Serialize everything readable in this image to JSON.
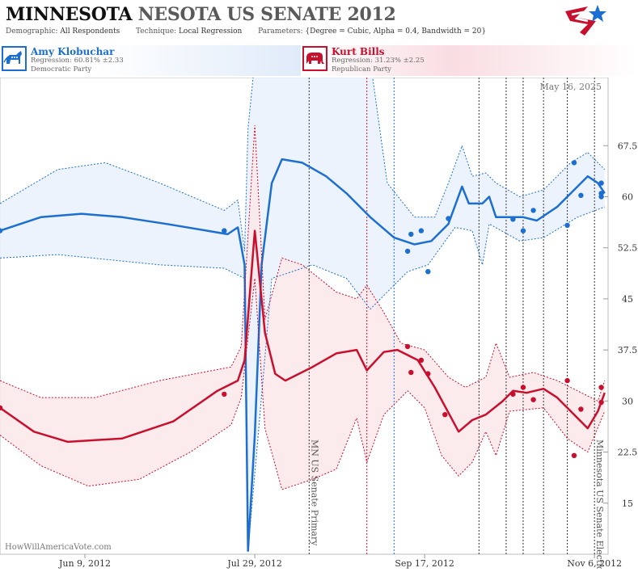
{
  "header": {
    "title_main": "MINNESOTA",
    "title_rest": "NESOTA US SENATE 2012",
    "demographic_label": "Demographic:",
    "demographic_value": "All Respondents",
    "technique_label": "Technique:",
    "technique_value": "Local Regression",
    "parameters_label": "Parameters:",
    "parameters_value": "{Degree = Cubic, Alpha = 0.4, Bandwidth = 20}"
  },
  "candidates": {
    "dem": {
      "name": "Amy Klobuchar",
      "regression": "Regression: 60.81% ±2.33",
      "party": "Democratic Party",
      "color": "#1c6fd0",
      "icon": "donkey-icon"
    },
    "rep": {
      "name": "Kurt Bills",
      "regression": "Regression: 31.23% ±2.25",
      "party": "Republican Party",
      "color": "#c8102e",
      "icon": "elephant-icon"
    }
  },
  "chart_data": {
    "type": "line",
    "date_label": "May 16, 2025",
    "watermark": "HowWillAmericaVote.com",
    "x_ticks": [
      "Jun 9, 2012",
      "Jul 29, 2012",
      "Sep 17, 2012",
      "Nov 6, 2012"
    ],
    "x_tick_dates": [
      "2012-06-09",
      "2012-07-29",
      "2012-09-17",
      "2012-11-06"
    ],
    "xlim": [
      "2012-05-15",
      "2012-11-10"
    ],
    "ylim": [
      7.5,
      77.5
    ],
    "y_ticks": [
      15,
      22.5,
      30,
      37.5,
      45,
      52.5,
      60,
      67.5
    ],
    "y_axis_side": "right",
    "events": [
      {
        "date": "2012-08-14",
        "label": "MN US Senate Primary"
      },
      {
        "date": "2012-11-06",
        "label": "Minnesota US Senate Election"
      }
    ],
    "vlines": [
      {
        "date": "2012-08-14",
        "color": "#333333"
      },
      {
        "date": "2012-08-31",
        "color": "#c8102e"
      },
      {
        "date": "2012-09-08",
        "color": "#1c6fd0"
      },
      {
        "date": "2012-10-03",
        "color": "#333333"
      },
      {
        "date": "2012-10-11",
        "color": "#333333"
      },
      {
        "date": "2012-10-16",
        "color": "#333333"
      },
      {
        "date": "2012-10-22",
        "color": "#333333"
      },
      {
        "date": "2012-10-29",
        "color": "#333333"
      },
      {
        "date": "2012-11-06",
        "color": "#333333"
      }
    ],
    "series": [
      {
        "name": "Amy Klobuchar",
        "color": "#1c6fd0",
        "line": [
          [
            "2012-05-15",
            55
          ],
          [
            "2012-05-27",
            57
          ],
          [
            "2012-06-08",
            57.5
          ],
          [
            "2012-06-20",
            57
          ],
          [
            "2012-07-03",
            56
          ],
          [
            "2012-07-15",
            55
          ],
          [
            "2012-07-21",
            54.5
          ],
          [
            "2012-07-24",
            55.5
          ],
          [
            "2012-07-26",
            50
          ],
          [
            "2012-07-27",
            8
          ],
          [
            "2012-07-29",
            25
          ],
          [
            "2012-07-31",
            50
          ],
          [
            "2012-08-03",
            62
          ],
          [
            "2012-08-06",
            65.5
          ],
          [
            "2012-08-12",
            65
          ],
          [
            "2012-08-19",
            63
          ],
          [
            "2012-08-25",
            60.5
          ],
          [
            "2012-09-01",
            57
          ],
          [
            "2012-09-08",
            54
          ],
          [
            "2012-09-14",
            53
          ],
          [
            "2012-09-19",
            53.5
          ],
          [
            "2012-09-24",
            56
          ],
          [
            "2012-09-28",
            61.5
          ],
          [
            "2012-09-30",
            59
          ],
          [
            "2012-10-04",
            59
          ],
          [
            "2012-10-06",
            60
          ],
          [
            "2012-10-08",
            57
          ],
          [
            "2012-10-16",
            57
          ],
          [
            "2012-10-20",
            56.5
          ],
          [
            "2012-10-26",
            58.5
          ],
          [
            "2012-11-01",
            61.5
          ],
          [
            "2012-11-04",
            63
          ],
          [
            "2012-11-07",
            62
          ],
          [
            "2012-11-09",
            60.5
          ]
        ],
        "upper": [
          [
            "2012-05-15",
            59
          ],
          [
            "2012-06-01",
            64
          ],
          [
            "2012-06-15",
            65
          ],
          [
            "2012-07-01",
            62
          ],
          [
            "2012-07-20",
            58
          ],
          [
            "2012-07-24",
            59.5
          ],
          [
            "2012-07-26",
            52
          ],
          [
            "2012-07-27",
            70
          ],
          [
            "2012-07-29",
            80
          ],
          [
            "2012-08-06",
            80
          ],
          [
            "2012-09-01",
            80
          ],
          [
            "2012-09-06",
            62
          ],
          [
            "2012-09-14",
            57
          ],
          [
            "2012-09-20",
            57
          ],
          [
            "2012-09-24",
            62
          ],
          [
            "2012-09-28",
            67.5
          ],
          [
            "2012-10-01",
            63
          ],
          [
            "2012-10-05",
            63.5
          ],
          [
            "2012-10-08",
            62
          ],
          [
            "2012-10-15",
            60
          ],
          [
            "2012-10-22",
            61
          ],
          [
            "2012-10-30",
            65
          ],
          [
            "2012-11-04",
            66.5
          ],
          [
            "2012-11-09",
            64
          ]
        ],
        "lower": [
          [
            "2012-05-15",
            51
          ],
          [
            "2012-06-01",
            51.5
          ],
          [
            "2012-07-01",
            50
          ],
          [
            "2012-07-20",
            49.5
          ],
          [
            "2012-07-26",
            48
          ],
          [
            "2012-07-27",
            8
          ],
          [
            "2012-07-30",
            25
          ],
          [
            "2012-08-03",
            48
          ],
          [
            "2012-08-15",
            50
          ],
          [
            "2012-08-25",
            48
          ],
          [
            "2012-09-01",
            43.5
          ],
          [
            "2012-09-06",
            46
          ],
          [
            "2012-09-12",
            49
          ],
          [
            "2012-09-18",
            50
          ],
          [
            "2012-09-26",
            55.5
          ],
          [
            "2012-10-01",
            55
          ],
          [
            "2012-10-04",
            50
          ],
          [
            "2012-10-06",
            56
          ],
          [
            "2012-10-15",
            53.5
          ],
          [
            "2012-10-22",
            54
          ],
          [
            "2012-11-01",
            57
          ],
          [
            "2012-11-09",
            58.5
          ]
        ],
        "points": [
          [
            "2012-05-15",
            55
          ],
          [
            "2012-07-20",
            55
          ],
          [
            "2012-09-12",
            52
          ],
          [
            "2012-09-13",
            54.5
          ],
          [
            "2012-09-16",
            55
          ],
          [
            "2012-09-18",
            49
          ],
          [
            "2012-09-24",
            56.8
          ],
          [
            "2012-10-13",
            56.7
          ],
          [
            "2012-10-16",
            55
          ],
          [
            "2012-10-19",
            58
          ],
          [
            "2012-10-29",
            55.8
          ],
          [
            "2012-10-31",
            65
          ],
          [
            "2012-11-02",
            60.2
          ],
          [
            "2012-11-08",
            62
          ],
          [
            "2012-11-08",
            60.5
          ],
          [
            "2012-11-08",
            60
          ]
        ]
      },
      {
        "name": "Kurt Bills",
        "color": "#c8102e",
        "line": [
          [
            "2012-05-15",
            29
          ],
          [
            "2012-05-25",
            25.5
          ],
          [
            "2012-06-04",
            24
          ],
          [
            "2012-06-20",
            24.5
          ],
          [
            "2012-07-05",
            27
          ],
          [
            "2012-07-18",
            31.5
          ],
          [
            "2012-07-24",
            33
          ],
          [
            "2012-07-26",
            36
          ],
          [
            "2012-07-29",
            55
          ],
          [
            "2012-08-01",
            40
          ],
          [
            "2012-08-04",
            34
          ],
          [
            "2012-08-07",
            33
          ],
          [
            "2012-08-15",
            35
          ],
          [
            "2012-08-22",
            37
          ],
          [
            "2012-08-28",
            37.5
          ],
          [
            "2012-08-31",
            34.5
          ],
          [
            "2012-09-05",
            37.2
          ],
          [
            "2012-09-09",
            37.5
          ],
          [
            "2012-09-15",
            36
          ],
          [
            "2012-09-20",
            32
          ],
          [
            "2012-09-27",
            25.5
          ],
          [
            "2012-10-01",
            27.2
          ],
          [
            "2012-10-05",
            28
          ],
          [
            "2012-10-10",
            30
          ],
          [
            "2012-10-13",
            31.5
          ],
          [
            "2012-10-17",
            31.2
          ],
          [
            "2012-10-22",
            31.8
          ],
          [
            "2012-10-26",
            30.5
          ],
          [
            "2012-10-30",
            28.5
          ],
          [
            "2012-11-04",
            26
          ],
          [
            "2012-11-07",
            28.5
          ],
          [
            "2012-11-09",
            31.2
          ]
        ],
        "upper": [
          [
            "2012-05-15",
            33
          ],
          [
            "2012-05-27",
            30.5
          ],
          [
            "2012-06-12",
            30.5
          ],
          [
            "2012-07-01",
            33
          ],
          [
            "2012-07-22",
            35
          ],
          [
            "2012-07-25",
            38
          ],
          [
            "2012-07-29",
            70.5
          ],
          [
            "2012-08-01",
            42
          ],
          [
            "2012-08-06",
            51
          ],
          [
            "2012-08-12",
            50
          ],
          [
            "2012-08-22",
            46
          ],
          [
            "2012-08-28",
            45
          ],
          [
            "2012-08-31",
            47
          ],
          [
            "2012-09-05",
            43
          ],
          [
            "2012-09-10",
            38.5
          ],
          [
            "2012-09-17",
            37.5
          ],
          [
            "2012-09-24",
            33.5
          ],
          [
            "2012-09-29",
            32
          ],
          [
            "2012-10-05",
            33.5
          ],
          [
            "2012-10-08",
            38.5
          ],
          [
            "2012-10-12",
            33.5
          ],
          [
            "2012-10-19",
            34.2
          ],
          [
            "2012-10-26",
            33
          ],
          [
            "2012-11-01",
            31.5
          ],
          [
            "2012-11-07",
            30
          ],
          [
            "2012-11-09",
            33
          ]
        ],
        "lower": [
          [
            "2012-05-15",
            25
          ],
          [
            "2012-05-27",
            20.5
          ],
          [
            "2012-06-10",
            17.5
          ],
          [
            "2012-06-25",
            18.5
          ],
          [
            "2012-07-10",
            22.5
          ],
          [
            "2012-07-22",
            26.5
          ],
          [
            "2012-07-25",
            30.5
          ],
          [
            "2012-07-29",
            48
          ],
          [
            "2012-08-01",
            26
          ],
          [
            "2012-08-06",
            17
          ],
          [
            "2012-08-15",
            18.5
          ],
          [
            "2012-08-22",
            20
          ],
          [
            "2012-08-28",
            27.5
          ],
          [
            "2012-08-31",
            21
          ],
          [
            "2012-09-05",
            28
          ],
          [
            "2012-09-12",
            31.5
          ],
          [
            "2012-09-17",
            29
          ],
          [
            "2012-09-22",
            22
          ],
          [
            "2012-09-27",
            19
          ],
          [
            "2012-10-01",
            21
          ],
          [
            "2012-10-05",
            25.5
          ],
          [
            "2012-10-08",
            22
          ],
          [
            "2012-10-12",
            28.5
          ],
          [
            "2012-10-22",
            29
          ],
          [
            "2012-10-29",
            24.5
          ],
          [
            "2012-11-04",
            22.5
          ],
          [
            "2012-11-09",
            28.5
          ]
        ],
        "points": [
          [
            "2012-05-15",
            29
          ],
          [
            "2012-07-20",
            31
          ],
          [
            "2012-09-12",
            38
          ],
          [
            "2012-09-13",
            34.2
          ],
          [
            "2012-09-16",
            36
          ],
          [
            "2012-09-18",
            34
          ],
          [
            "2012-09-23",
            28
          ],
          [
            "2012-10-13",
            31
          ],
          [
            "2012-10-16",
            32
          ],
          [
            "2012-10-19",
            30.2
          ],
          [
            "2012-10-29",
            33
          ],
          [
            "2012-10-31",
            22
          ],
          [
            "2012-11-02",
            28.8
          ],
          [
            "2012-11-08",
            32
          ],
          [
            "2012-11-08",
            29.8
          ]
        ]
      }
    ]
  }
}
